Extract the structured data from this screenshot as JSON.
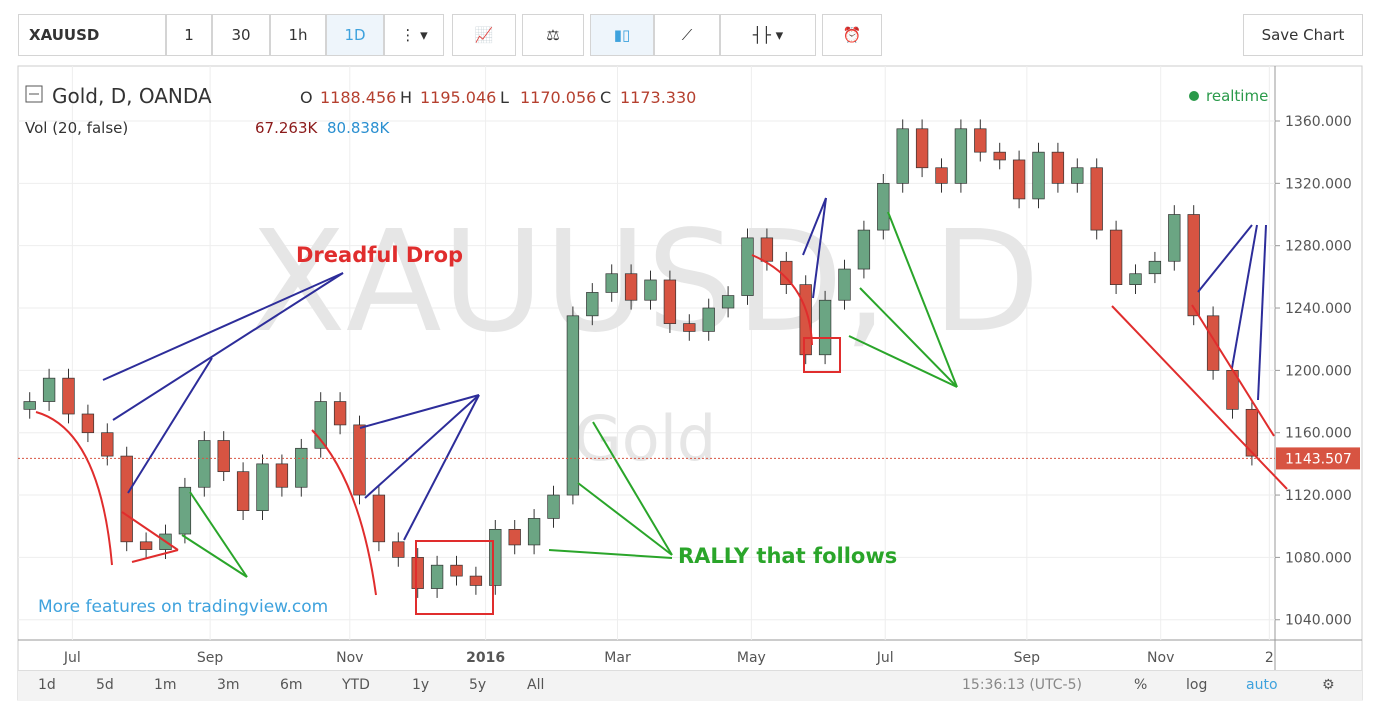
{
  "toolbar": {
    "symbol": "XAUUSD",
    "intervals": [
      "1",
      "30",
      "1h",
      "1D"
    ],
    "save": "Save Chart"
  },
  "legend": {
    "title": "Gold, D, OANDA",
    "ohlc": [
      {
        "k": "O",
        "v": "1188.456"
      },
      {
        "k": "H",
        "v": "1195.046"
      },
      {
        "k": "L",
        "v": "1170.056"
      },
      {
        "k": "C",
        "v": "1173.330"
      }
    ],
    "vol_title": "Vol (20, false)",
    "vol_values": [
      "67.263K",
      "80.838K"
    ],
    "realtime": "realtime"
  },
  "bottom": {
    "ranges": [
      "1d",
      "5d",
      "1m",
      "3m",
      "6m",
      "YTD",
      "1y",
      "5y",
      "All"
    ],
    "clock": "15:36:13 (UTC-5)",
    "options": [
      "%",
      "log",
      "auto"
    ]
  },
  "chart_data": {
    "type": "candlestick",
    "watermark": "XAUUSD, D",
    "watermark_sub": "Gold",
    "promo": "More features on tradingview.com",
    "annotations": [
      "Dreadful Drop",
      "RALLY that follows"
    ],
    "up_color": "#6ba583",
    "down_color": "#d75442",
    "open": [
      1175,
      1180,
      1195,
      1172,
      1160,
      1145,
      1090,
      1085,
      1095,
      1125,
      1155,
      1135,
      1110,
      1140,
      1125,
      1150,
      1180,
      1165,
      1120,
      1090,
      1080,
      1060,
      1075,
      1068,
      1062,
      1098,
      1088,
      1105,
      1120,
      1235,
      1250,
      1262,
      1245,
      1258,
      1230,
      1225,
      1240,
      1248,
      1285,
      1270,
      1255,
      1210,
      1245,
      1265,
      1290,
      1320,
      1355,
      1330,
      1320,
      1355,
      1340,
      1335,
      1310,
      1340,
      1320,
      1330,
      1290,
      1255,
      1262,
      1270,
      1300,
      1235,
      1200,
      1175
    ],
    "high": [
      1186,
      1201,
      1201,
      1178,
      1166,
      1151,
      1096,
      1101,
      1131,
      1161,
      1161,
      1141,
      1146,
      1146,
      1156,
      1186,
      1186,
      1171,
      1126,
      1096,
      1086,
      1081,
      1081,
      1074,
      1104,
      1104,
      1111,
      1126,
      1241,
      1256,
      1268,
      1268,
      1264,
      1264,
      1236,
      1246,
      1254,
      1291,
      1291,
      1276,
      1261,
      1251,
      1271,
      1296,
      1326,
      1361,
      1361,
      1336,
      1361,
      1361,
      1346,
      1341,
      1346,
      1346,
      1336,
      1336,
      1296,
      1268,
      1276,
      1306,
      1306,
      1241,
      1206,
      1181
    ],
    "low": [
      1169,
      1174,
      1166,
      1154,
      1139,
      1084,
      1079,
      1079,
      1089,
      1119,
      1129,
      1104,
      1104,
      1119,
      1119,
      1144,
      1159,
      1114,
      1084,
      1074,
      1054,
      1054,
      1062,
      1056,
      1056,
      1082,
      1082,
      1099,
      1114,
      1229,
      1244,
      1239,
      1239,
      1224,
      1219,
      1219,
      1234,
      1242,
      1264,
      1249,
      1204,
      1204,
      1239,
      1259,
      1284,
      1314,
      1324,
      1314,
      1314,
      1334,
      1329,
      1304,
      1304,
      1314,
      1314,
      1284,
      1249,
      1249,
      1256,
      1264,
      1229,
      1194,
      1169,
      1139
    ],
    "close": [
      1180,
      1195,
      1172,
      1160,
      1145,
      1090,
      1085,
      1095,
      1125,
      1155,
      1135,
      1110,
      1140,
      1125,
      1150,
      1180,
      1165,
      1120,
      1090,
      1080,
      1060,
      1075,
      1068,
      1062,
      1098,
      1088,
      1105,
      1120,
      1235,
      1250,
      1262,
      1245,
      1258,
      1230,
      1225,
      1240,
      1248,
      1285,
      1270,
      1255,
      1210,
      1245,
      1265,
      1290,
      1320,
      1355,
      1330,
      1320,
      1355,
      1340,
      1335,
      1310,
      1340,
      1320,
      1330,
      1290,
      1255,
      1262,
      1270,
      1300,
      1235,
      1200,
      1175,
      1145
    ],
    "last_price": 1143.507,
    "xlim": [
      0,
      65
    ],
    "xticks": [
      {
        "value": 2.7,
        "label": "Jul"
      },
      {
        "value": 9.8,
        "label": "Sep"
      },
      {
        "value": 17,
        "label": "Nov"
      },
      {
        "value": 24,
        "label": "2016"
      },
      {
        "value": 30.8,
        "label": "Mar"
      },
      {
        "value": 37.7,
        "label": "May"
      },
      {
        "value": 44.6,
        "label": "Jul"
      },
      {
        "value": 51.9,
        "label": "Sep"
      },
      {
        "value": 58.8,
        "label": "Nov"
      },
      {
        "value": 64.4,
        "label": "2"
      }
    ],
    "ylim": [
      1027,
      1394
    ],
    "yticks": [
      {
        "value": 1040,
        "label": "1040.000"
      },
      {
        "value": 1080,
        "label": "1080.000"
      },
      {
        "value": 1120,
        "label": "1120.000"
      },
      {
        "value": 1160,
        "label": "1160.000"
      },
      {
        "value": 1200,
        "label": "1200.000"
      },
      {
        "value": 1240,
        "label": "1240.000"
      },
      {
        "value": 1280,
        "label": "1280.000"
      },
      {
        "value": 1320,
        "label": "1320.000"
      },
      {
        "value": 1360,
        "label": "1360.000"
      }
    ],
    "grid": true
  }
}
